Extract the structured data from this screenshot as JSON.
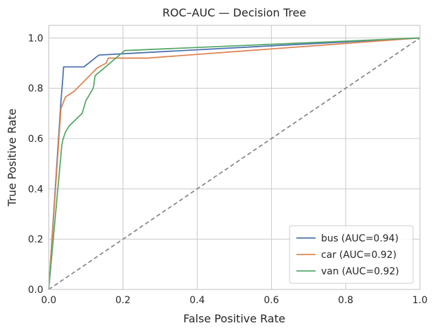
{
  "chart_data": {
    "type": "line",
    "title": "ROC–AUC — Decision Tree",
    "xlabel": "False Positive Rate",
    "ylabel": "True Positive Rate",
    "xlim": [
      0,
      1
    ],
    "ylim": [
      0,
      1.05
    ],
    "xticks": [
      0,
      0.2,
      0.4,
      0.6,
      0.8,
      1.0
    ],
    "yticks": [
      0,
      0.2,
      0.4,
      0.6,
      0.8,
      1.0
    ],
    "xtick_labels": [
      "0.0",
      "0.2",
      "0.4",
      "0.6",
      "0.8",
      "1.0"
    ],
    "ytick_labels": [
      "0.0",
      "0.2",
      "0.4",
      "0.6",
      "0.8",
      "1.0"
    ],
    "grid": true,
    "legend_position": "bottom-right",
    "series": [
      {
        "name": "bus (AUC=0.94)",
        "color": "#4c72b0",
        "x": [
          0,
          0.033,
          0.038,
          0.04,
          0.095,
          0.135,
          0.21,
          1.0
        ],
        "y": [
          0,
          0.75,
          0.84,
          0.885,
          0.885,
          0.932,
          0.938,
          1.0
        ]
      },
      {
        "name": "car (AUC=0.92)",
        "color": "#dd8452",
        "x": [
          0,
          0.033,
          0.045,
          0.07,
          0.13,
          0.155,
          0.16,
          0.265,
          1.0
        ],
        "y": [
          0,
          0.72,
          0.765,
          0.79,
          0.88,
          0.9,
          0.92,
          0.92,
          1.0
        ]
      },
      {
        "name": "van (AUC=0.92)",
        "color": "#55a868",
        "x": [
          0,
          0.035,
          0.038,
          0.045,
          0.055,
          0.09,
          0.1,
          0.12,
          0.125,
          0.205,
          1.0
        ],
        "y": [
          0,
          0.57,
          0.595,
          0.625,
          0.65,
          0.7,
          0.75,
          0.8,
          0.85,
          0.95,
          1.0
        ]
      }
    ],
    "reference_line": {
      "color": "#888888",
      "x": [
        0,
        1
      ],
      "y": [
        0,
        1
      ]
    }
  }
}
